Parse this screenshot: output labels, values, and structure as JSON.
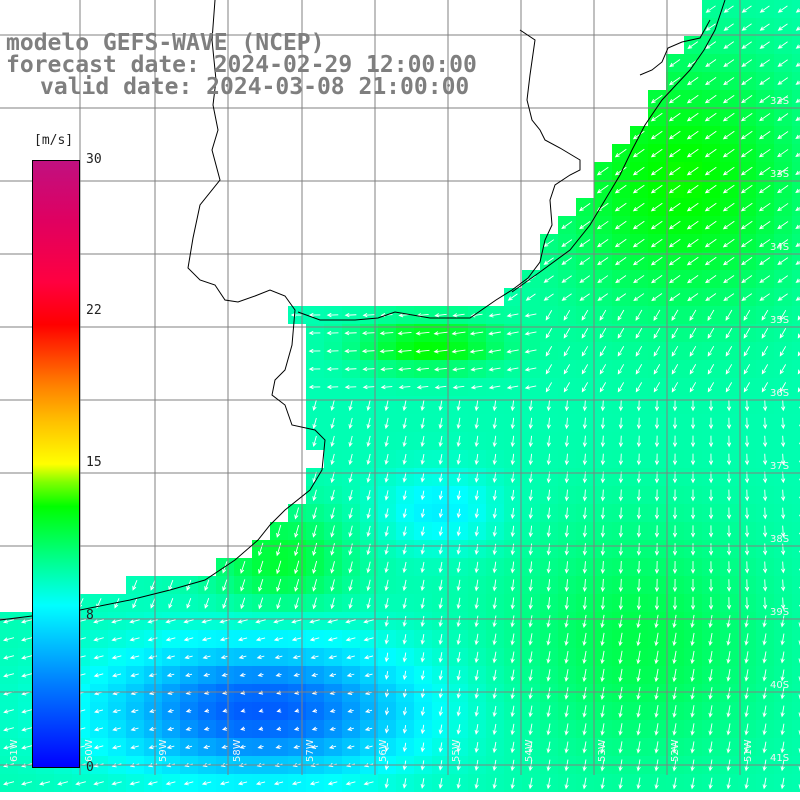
{
  "title": {
    "model": "modelo GEFS-WAVE (NCEP)",
    "forecast": "forecast date: 2024-02-29 12:00:00",
    "valid": "valid date: 2024-03-08 21:00:00"
  },
  "colorbar": {
    "unit": "[m/s]",
    "ticks": [
      "30",
      "22",
      "15",
      "8",
      "0"
    ],
    "colors": [
      "#0000ff",
      "#0080ff",
      "#00ffff",
      "#00ff80",
      "#00ff00",
      "#ffff00",
      "#ff8000",
      "#ff0000",
      "#c01080"
    ]
  },
  "axes": {
    "lat_labels": [
      "32S",
      "33S",
      "34S",
      "35S",
      "36S",
      "37S",
      "38S",
      "39S",
      "40S",
      "41S"
    ],
    "lon_labels": [
      "61W",
      "60W",
      "59W",
      "58W",
      "57W",
      "56W",
      "55W",
      "54W",
      "53W",
      "52W",
      "51W"
    ]
  },
  "map_colors": {
    "coast": "#000000",
    "grid": "#808080",
    "land": "#ffffff",
    "arrows": "#ffffff"
  }
}
